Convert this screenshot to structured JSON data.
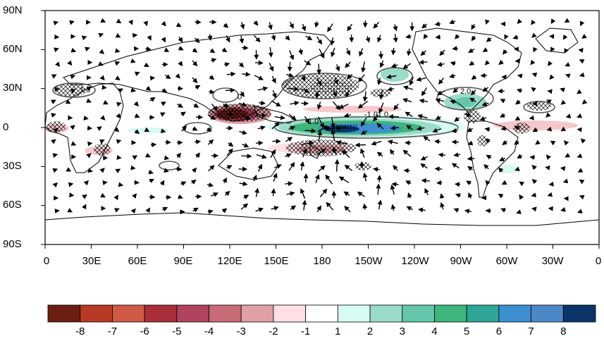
{
  "map": {
    "lat_labels": [
      "90N",
      "60N",
      "30N",
      "0",
      "30S",
      "60S",
      "90S"
    ],
    "lon_labels": [
      "0",
      "30E",
      "60E",
      "90E",
      "120E",
      "150E",
      "180",
      "150W",
      "120W",
      "90W",
      "60W",
      "30W",
      "0"
    ],
    "contour_labels": [
      "1.0",
      "-1.0",
      "2.0",
      "-1.0",
      "1.0",
      "0"
    ]
  },
  "colorbar": {
    "labels": [
      "-8",
      "-7",
      "-6",
      "-5",
      "-4",
      "-3",
      "-2",
      "-1",
      "1",
      "2",
      "3",
      "4",
      "5",
      "6",
      "7",
      "8"
    ],
    "colors": [
      "#6b1f10",
      "#b83a24",
      "#cf5a45",
      "#a82e3a",
      "#b1435f",
      "#c86b76",
      "#dfa0a6",
      "#fde0e3",
      "#ffffff",
      "#d6fbf2",
      "#9adbca",
      "#66c6ab",
      "#3db57d",
      "#2fa596",
      "#3d8fcf",
      "#4d88c6",
      "#0b3469"
    ]
  }
}
